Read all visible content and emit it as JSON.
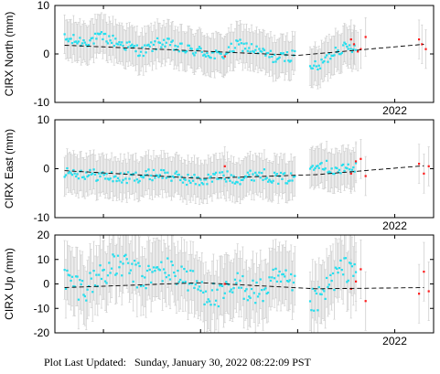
{
  "footer": {
    "label": "Plot Last Updated:",
    "timestamp": "Sunday, January 30, 2022 08:22:09 PST"
  },
  "colors": {
    "point": "#22e0f0",
    "point_recent": "#ff1a1a",
    "error_bar": "#cfcfcf",
    "trend": "#000000",
    "frame": "#000000"
  },
  "chart_data": [
    {
      "type": "scatter",
      "ylabel": "CIRX North (mm)",
      "ylim": [
        -10,
        10
      ],
      "yticks": [
        -10,
        0,
        10
      ],
      "xlim": [
        2018.5,
        2022.4
      ],
      "xticks": [
        2022
      ],
      "xtick_labels": [
        "2022"
      ],
      "trend": {
        "x": [
          2018.6,
          2020.0,
          2021.0,
          2022.3
        ],
        "y": [
          1.8,
          0.6,
          -0.3,
          2.0
        ]
      },
      "error_bar_mm": 4.0,
      "series": [
        {
          "color": "cyan",
          "x_start": 2018.6,
          "x_end": 2021.65,
          "x": [
            2018.6,
            2018.8,
            2019.0,
            2019.2,
            2019.4,
            2019.6,
            2019.8,
            2020.0,
            2020.2,
            2020.4,
            2020.6,
            2020.8,
            2021.0,
            2021.2,
            2021.4,
            2021.6
          ],
          "y": [
            3.0,
            2.5,
            3.5,
            2.0,
            0.5,
            2.5,
            1.0,
            0.5,
            -0.5,
            2.0,
            0.5,
            -1.0,
            0.0,
            -3.0,
            1.0,
            1.5
          ]
        },
        {
          "color": "red",
          "x": [
            2020.25,
            2021.55,
            2021.58,
            2021.62,
            2021.65,
            2021.7,
            2022.25,
            2022.28,
            2022.32
          ],
          "y": [
            -0.5,
            3.0,
            2.0,
            0.5,
            1.0,
            3.5,
            3.0,
            2.0,
            1.0
          ]
        }
      ]
    },
    {
      "type": "scatter",
      "ylabel": "CIRX East (mm)",
      "ylim": [
        -10,
        10
      ],
      "yticks": [
        -10,
        0,
        10
      ],
      "xlim": [
        2018.5,
        2022.4
      ],
      "xticks": [
        2022
      ],
      "xtick_labels": [
        "2022"
      ],
      "trend": {
        "x": [
          2018.6,
          2020.0,
          2021.2,
          2022.3
        ],
        "y": [
          -0.4,
          -2.0,
          -1.2,
          0.6
        ]
      },
      "error_bar_mm": 4.0,
      "series": [
        {
          "color": "cyan",
          "x": [
            2018.6,
            2018.8,
            2019.0,
            2019.2,
            2019.4,
            2019.6,
            2019.8,
            2020.0,
            2020.2,
            2020.4,
            2020.6,
            2020.8,
            2021.0,
            2021.2,
            2021.4,
            2021.6
          ],
          "y": [
            -0.5,
            -1.0,
            -1.5,
            -2.0,
            -1.5,
            -1.0,
            -2.0,
            -2.5,
            -1.5,
            -2.0,
            -1.0,
            -2.0,
            -2.0,
            1.5,
            -0.5,
            0.5
          ]
        },
        {
          "color": "red",
          "x": [
            2020.25,
            2021.55,
            2021.6,
            2021.65,
            2021.7,
            2022.25,
            2022.3,
            2022.35
          ],
          "y": [
            0.5,
            -1.0,
            1.5,
            2.0,
            -1.5,
            1.0,
            -1.0,
            0.5
          ]
        }
      ]
    },
    {
      "type": "scatter",
      "ylabel": "CIRX Up (mm)",
      "ylim": [
        -20,
        20
      ],
      "yticks": [
        -20,
        -10,
        0,
        10,
        20
      ],
      "xlim": [
        2018.5,
        2022.4
      ],
      "xticks": [
        2022
      ],
      "xtick_labels": [
        "2022"
      ],
      "trend": {
        "x": [
          2018.6,
          2020.0,
          2021.2,
          2022.3
        ],
        "y": [
          -1.5,
          0.5,
          -2.0,
          -1.5
        ]
      },
      "error_bar_mm": 12.0,
      "series": [
        {
          "color": "cyan",
          "x": [
            2018.6,
            2018.8,
            2019.0,
            2019.2,
            2019.4,
            2019.6,
            2019.8,
            2020.0,
            2020.2,
            2020.4,
            2020.6,
            2020.8,
            2021.0,
            2021.2,
            2021.4,
            2021.6
          ],
          "y": [
            2.0,
            -2.0,
            5.0,
            8.0,
            2.0,
            6.0,
            4.0,
            -2.0,
            -6.0,
            0.0,
            -4.0,
            2.0,
            -3.0,
            -8.0,
            4.0,
            8.0
          ]
        },
        {
          "color": "red",
          "x": [
            2020.25,
            2021.55,
            2021.6,
            2021.65,
            2021.7,
            2022.25,
            2022.3,
            2022.35
          ],
          "y": [
            0.0,
            -2.0,
            1.0,
            6.0,
            -7.0,
            -4.0,
            5.0,
            -3.0
          ]
        }
      ]
    }
  ]
}
